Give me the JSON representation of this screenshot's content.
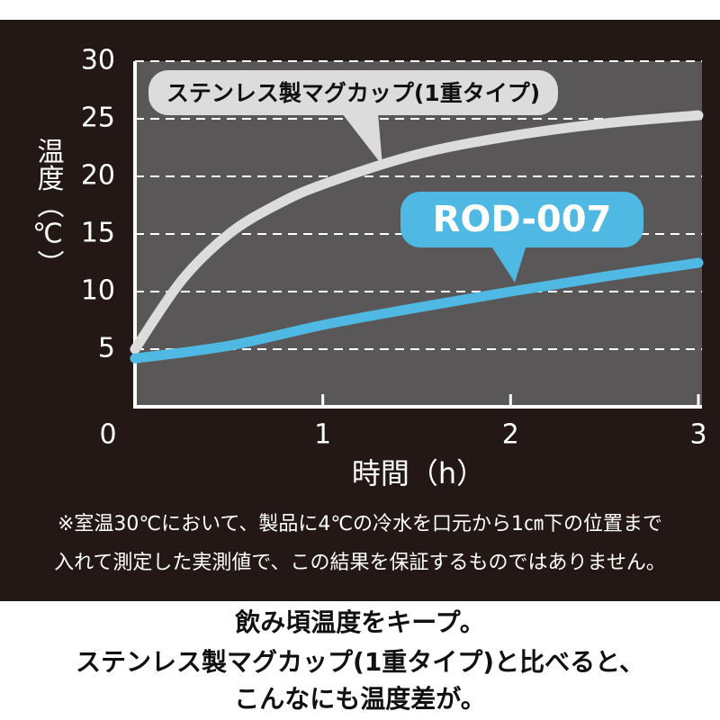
{
  "chart_data": {
    "type": "line",
    "y_label": "温度（℃）",
    "x_label": "時間（h）",
    "xlim": [
      0,
      3
    ],
    "xticks": [
      0,
      1,
      2,
      3
    ],
    "ylim": [
      0,
      30
    ],
    "yticks": [
      5,
      10,
      15,
      20,
      25,
      30
    ],
    "grid": true,
    "series": [
      {
        "name": "ステンレス製マグカップ(1重タイプ)",
        "color": "#dcdcdc",
        "x": [
          0,
          0.25,
          0.5,
          0.75,
          1,
          1.5,
          2,
          2.5,
          3
        ],
        "values": [
          5,
          11,
          15,
          17.5,
          19.3,
          21.9,
          23.5,
          24.6,
          25.3
        ]
      },
      {
        "name": "ROD-007",
        "color": "#4fb8e3",
        "x": [
          0,
          0.5,
          1,
          1.5,
          2,
          2.5,
          3
        ],
        "values": [
          4.2,
          5.3,
          7.1,
          8.6,
          10,
          11.3,
          12.5
        ]
      }
    ],
    "footnote": [
      "※室温30℃において、製品に4℃の冷水を口元から1㎝下の位置まで",
      "入れて測定した実測値で、この結果を保証するものではありません。"
    ],
    "caption": [
      "飲み頃温度をキープ。",
      "ステンレス製マグカップ(1重タイプ)と比べると、",
      "こんなにも温度差が。"
    ]
  }
}
